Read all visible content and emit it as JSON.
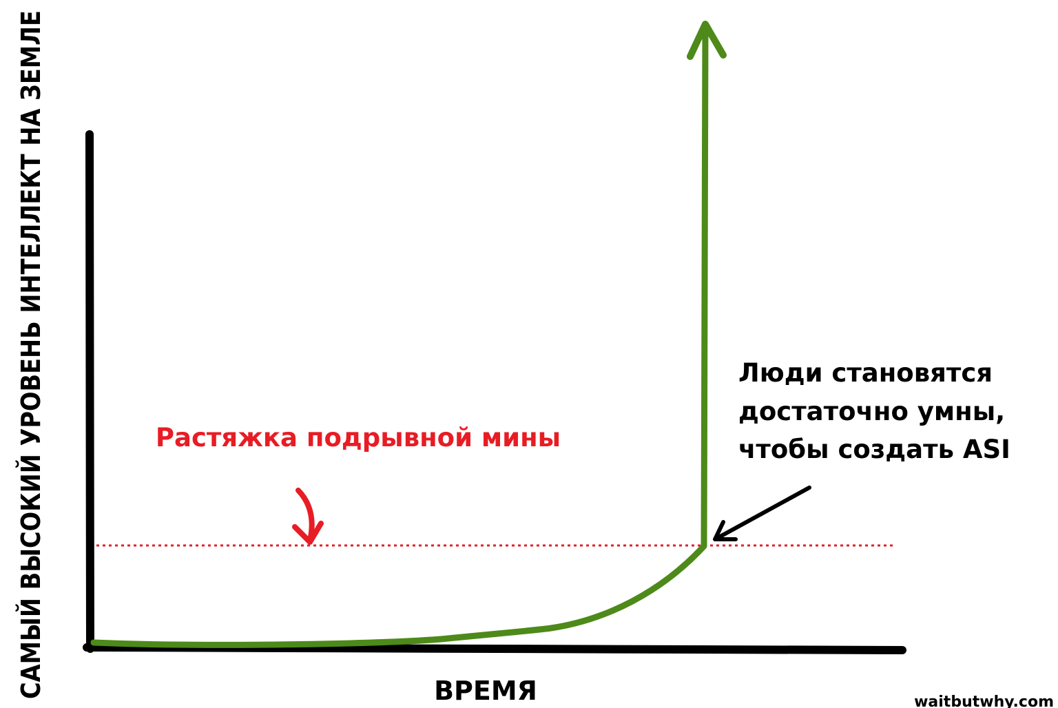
{
  "y_axis_label": "САМЫЙ ВЫСОКИЙ УРОВЕНЬ ИНТЕЛЛЕКТ НА ЗЕМЛЕ",
  "x_axis_label": "ВРЕМЯ",
  "tripwire_label": "Растяжка подрывной мины",
  "annotation": [
    "Люди становятся",
    "достаточно умны,",
    "чтобы создать ASI"
  ],
  "credit": "waitbutwhy.com"
}
